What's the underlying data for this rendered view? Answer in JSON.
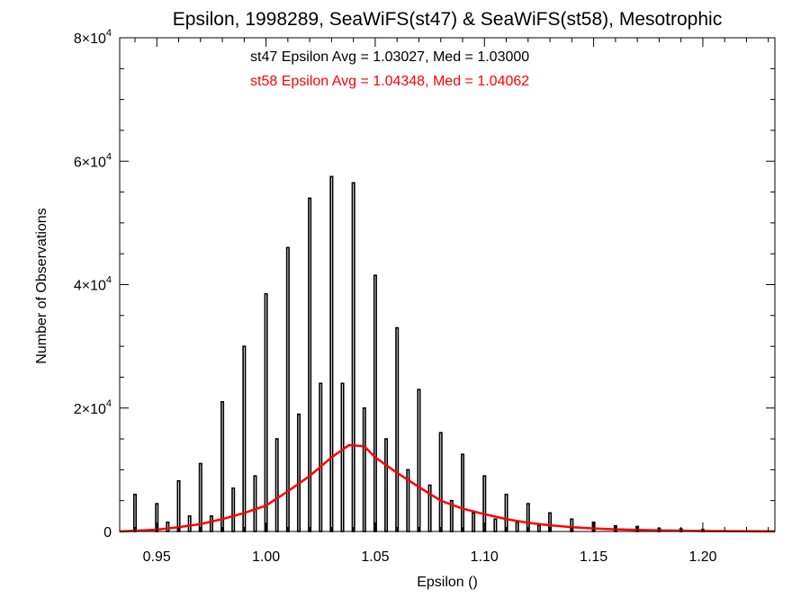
{
  "chart_data": {
    "type": "histogram",
    "title": "Epsilon, 1998289, SeaWiFS(st47) & SeaWiFS(st58), Mesotrophic",
    "xlabel": "Epsilon ()",
    "ylabel": "Number of Observations",
    "xlim": [
      0.933,
      1.233
    ],
    "ylim": [
      0,
      80000
    ],
    "x_ticks": [
      "0.95",
      "1.00",
      "1.05",
      "1.10",
      "1.15",
      "1.20"
    ],
    "y_ticks": [
      {
        "value": 0,
        "label": "0",
        "mantissa": "",
        "exponent": ""
      },
      {
        "value": 20000,
        "label": "2×10^4",
        "mantissa": "2×10",
        "exponent": "4"
      },
      {
        "value": 40000,
        "label": "4×10^4",
        "mantissa": "4×10",
        "exponent": "4"
      },
      {
        "value": 60000,
        "label": "6×10^4",
        "mantissa": "6×10",
        "exponent": "4"
      },
      {
        "value": 80000,
        "label": "8×10^4",
        "mantissa": "8×10",
        "exponent": "4"
      }
    ],
    "annotations": [
      "st47 Epsilon Avg = 1.03027, Med = 1.03000",
      "st58 Epsilon Avg = 1.04348, Med = 1.04062"
    ],
    "series": [
      {
        "name": "st47",
        "color": "#000000",
        "bin_width": 0.001,
        "spikes": [
          [
            0.94,
            6000
          ],
          [
            0.95,
            4500
          ],
          [
            0.955,
            1500
          ],
          [
            0.96,
            8200
          ],
          [
            0.965,
            2500
          ],
          [
            0.97,
            11000
          ],
          [
            0.975,
            2500
          ],
          [
            0.98,
            21000
          ],
          [
            0.985,
            7000
          ],
          [
            0.99,
            30000
          ],
          [
            0.995,
            9000
          ],
          [
            1.0,
            38500
          ],
          [
            1.005,
            15000
          ],
          [
            1.01,
            46000
          ],
          [
            1.015,
            19000
          ],
          [
            1.02,
            54000
          ],
          [
            1.025,
            24000
          ],
          [
            1.03,
            57500
          ],
          [
            1.035,
            24000
          ],
          [
            1.04,
            56500
          ],
          [
            1.045,
            20000
          ],
          [
            1.05,
            41500
          ],
          [
            1.055,
            15000
          ],
          [
            1.06,
            33000
          ],
          [
            1.065,
            10000
          ],
          [
            1.07,
            23000
          ],
          [
            1.075,
            7500
          ],
          [
            1.08,
            16000
          ],
          [
            1.085,
            5000
          ],
          [
            1.09,
            12500
          ],
          [
            1.095,
            3000
          ],
          [
            1.1,
            9000
          ],
          [
            1.105,
            2000
          ],
          [
            1.11,
            6000
          ],
          [
            1.115,
            1500
          ],
          [
            1.12,
            4500
          ],
          [
            1.125,
            1000
          ],
          [
            1.13,
            3000
          ],
          [
            1.14,
            2000
          ],
          [
            1.15,
            1500
          ],
          [
            1.16,
            900
          ],
          [
            1.17,
            800
          ],
          [
            1.18,
            500
          ],
          [
            1.19,
            400
          ],
          [
            1.2,
            300
          ]
        ]
      },
      {
        "name": "st58",
        "color": "#ff0000",
        "line_points": [
          [
            0.933,
            0
          ],
          [
            0.94,
            100
          ],
          [
            0.95,
            300
          ],
          [
            0.96,
            700
          ],
          [
            0.97,
            1200
          ],
          [
            0.98,
            2000
          ],
          [
            0.99,
            3000
          ],
          [
            1.0,
            4200
          ],
          [
            1.01,
            6500
          ],
          [
            1.02,
            9000
          ],
          [
            1.03,
            12000
          ],
          [
            1.038,
            14000
          ],
          [
            1.045,
            13800
          ],
          [
            1.05,
            12000
          ],
          [
            1.06,
            9500
          ],
          [
            1.07,
            7200
          ],
          [
            1.08,
            5000
          ],
          [
            1.09,
            3700
          ],
          [
            1.1,
            2800
          ],
          [
            1.11,
            2000
          ],
          [
            1.12,
            1400
          ],
          [
            1.13,
            1000
          ],
          [
            1.14,
            700
          ],
          [
            1.15,
            500
          ],
          [
            1.16,
            350
          ],
          [
            1.17,
            250
          ],
          [
            1.18,
            170
          ],
          [
            1.19,
            120
          ],
          [
            1.2,
            80
          ],
          [
            1.21,
            50
          ],
          [
            1.22,
            30
          ],
          [
            1.233,
            10
          ]
        ]
      }
    ]
  }
}
